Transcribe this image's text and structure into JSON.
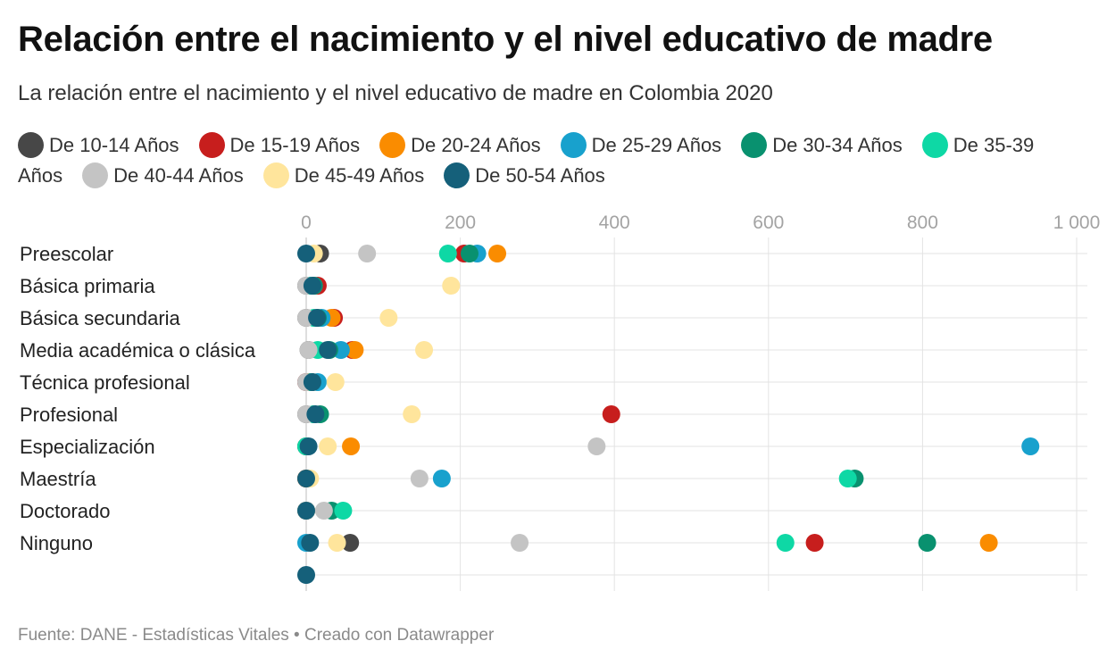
{
  "title": "Relación entre el nacimiento y el nivel educativo de madre",
  "subtitle": "La relación entre el nacimiento y el nivel educativo de madre en Colombia 2020",
  "source": "Fuente: DANE - Estadísticas Vitales • Creado con Datawrapper",
  "chart_data": {
    "type": "scatter",
    "orientation": "horizontal-dot-plot",
    "xlim": [
      0,
      1000
    ],
    "x_ticks": [
      0,
      200,
      400,
      600,
      800,
      1000
    ],
    "x_tick_labels": [
      "0",
      "200",
      "400",
      "600",
      "800",
      "1 000"
    ],
    "grid": true,
    "legend_position": "top",
    "categories": [
      "Preescolar",
      "Básica primaria",
      "Básica secundaria",
      "Media académica o clásica",
      "Técnica profesional",
      "Profesional",
      "Especialización",
      "Maestría",
      "Doctorado",
      "Ninguno",
      ""
    ],
    "series": [
      {
        "name": "De 10-14 Años",
        "color": "#474747",
        "values": [
          18,
          0,
          0,
          3,
          0,
          0,
          0,
          0,
          0,
          57,
          null
        ]
      },
      {
        "name": "De 15-19 Años",
        "color": "#c71e1d",
        "values": [
          205,
          15,
          36,
          60,
          0,
          396,
          0,
          0,
          0,
          660,
          null
        ]
      },
      {
        "name": "De 20-24 Años",
        "color": "#fa8c00",
        "values": [
          248,
          10,
          33,
          63,
          3,
          10,
          58,
          0,
          0,
          886,
          null
        ]
      },
      {
        "name": "De 25-29 Años",
        "color": "#18a1cd",
        "values": [
          222,
          10,
          20,
          45,
          15,
          10,
          940,
          176,
          0,
          0,
          null
        ]
      },
      {
        "name": "De 30-34 Años",
        "color": "#09916f",
        "values": [
          212,
          10,
          15,
          30,
          8,
          18,
          0,
          712,
          33,
          806,
          null
        ]
      },
      {
        "name": "De 35-39 Años",
        "color": "#0ed8a5",
        "values": [
          184,
          5,
          10,
          15,
          5,
          10,
          0,
          703,
          48,
          622,
          null
        ]
      },
      {
        "name": "De 40-44 Años",
        "color": "#c4c4c4",
        "values": [
          79,
          0,
          0,
          3,
          0,
          0,
          377,
          147,
          23,
          277,
          null
        ]
      },
      {
        "name": "De 45-49 Años",
        "color": "#ffe59c",
        "values": [
          10,
          188,
          107,
          153,
          38,
          137,
          28,
          5,
          0,
          40,
          null
        ]
      },
      {
        "name": "De 50-54 Años",
        "color": "#15607a",
        "values": [
          0,
          8,
          14,
          28,
          8,
          12,
          3,
          0,
          0,
          5,
          0
        ]
      }
    ]
  }
}
